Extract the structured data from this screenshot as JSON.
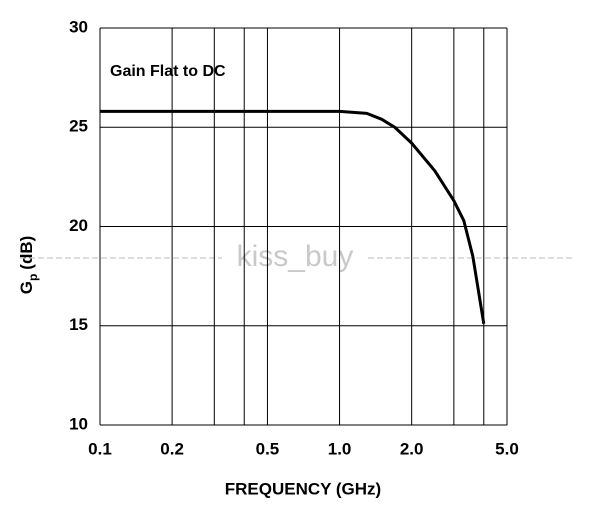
{
  "chart_data": {
    "type": "line",
    "xlabel": "FREQUENCY (GHz)",
    "ylabel": {
      "symbol": "G",
      "subscript": "p",
      "unit": "(dB)"
    },
    "annotation": "Gain Flat to DC",
    "watermark": "kiss_buy",
    "x": [
      0.1,
      0.2,
      0.5,
      1.0,
      1.3,
      1.5,
      1.7,
      2.0,
      2.5,
      3.0,
      3.3,
      3.6,
      4.0
    ],
    "series": [
      {
        "name": "Gp",
        "color": "#000000",
        "values": [
          25.8,
          25.8,
          25.8,
          25.8,
          25.7,
          25.4,
          25.0,
          24.2,
          22.8,
          21.3,
          20.3,
          18.5,
          15.1
        ]
      }
    ],
    "xscale": "log",
    "xlim": [
      0.1,
      5.0
    ],
    "xticks": [
      0.1,
      0.2,
      0.5,
      {
        "value": 1,
        "label": "1.0"
      },
      {
        "value": 2,
        "label": "2.0"
      },
      {
        "value": 5,
        "label": "5.0"
      }
    ],
    "xgrid_minor": [
      0.3,
      0.4,
      3,
      4
    ],
    "ylim": [
      10,
      30
    ],
    "yticks": [
      10,
      15,
      20,
      25,
      30
    ],
    "grid": true
  }
}
